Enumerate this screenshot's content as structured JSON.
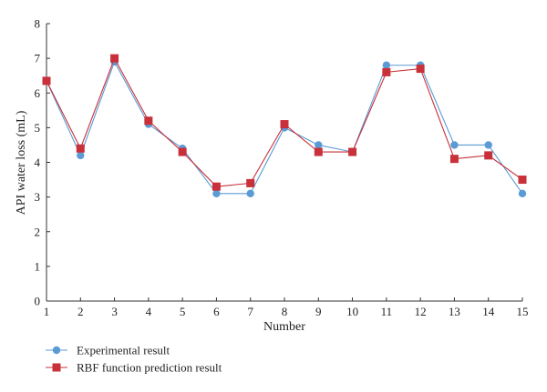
{
  "chart_data": {
    "type": "line",
    "title": "",
    "xlabel": "Number",
    "ylabel": "API water loss (mL)",
    "x": [
      1,
      2,
      3,
      4,
      5,
      6,
      7,
      8,
      9,
      10,
      11,
      12,
      13,
      14,
      15
    ],
    "xlim": [
      1,
      15
    ],
    "ylim": [
      0,
      8
    ],
    "yticks": [
      0,
      1,
      2,
      3,
      4,
      5,
      6,
      7,
      8
    ],
    "grid": false,
    "legend_position": "bottom-left",
    "series": [
      {
        "name": "Experimental result",
        "marker": "circle",
        "color": "#5b9bd5",
        "values": [
          6.35,
          4.2,
          6.9,
          5.1,
          4.4,
          3.1,
          3.1,
          5.0,
          4.5,
          4.3,
          6.8,
          6.8,
          4.5,
          4.5,
          3.1
        ]
      },
      {
        "name": "RBF function prediction result",
        "marker": "square",
        "color": "#c8303a",
        "values": [
          6.35,
          4.4,
          7.0,
          5.2,
          4.3,
          3.3,
          3.4,
          5.1,
          4.3,
          4.3,
          6.6,
          6.7,
          4.1,
          4.2,
          3.5
        ]
      }
    ]
  }
}
